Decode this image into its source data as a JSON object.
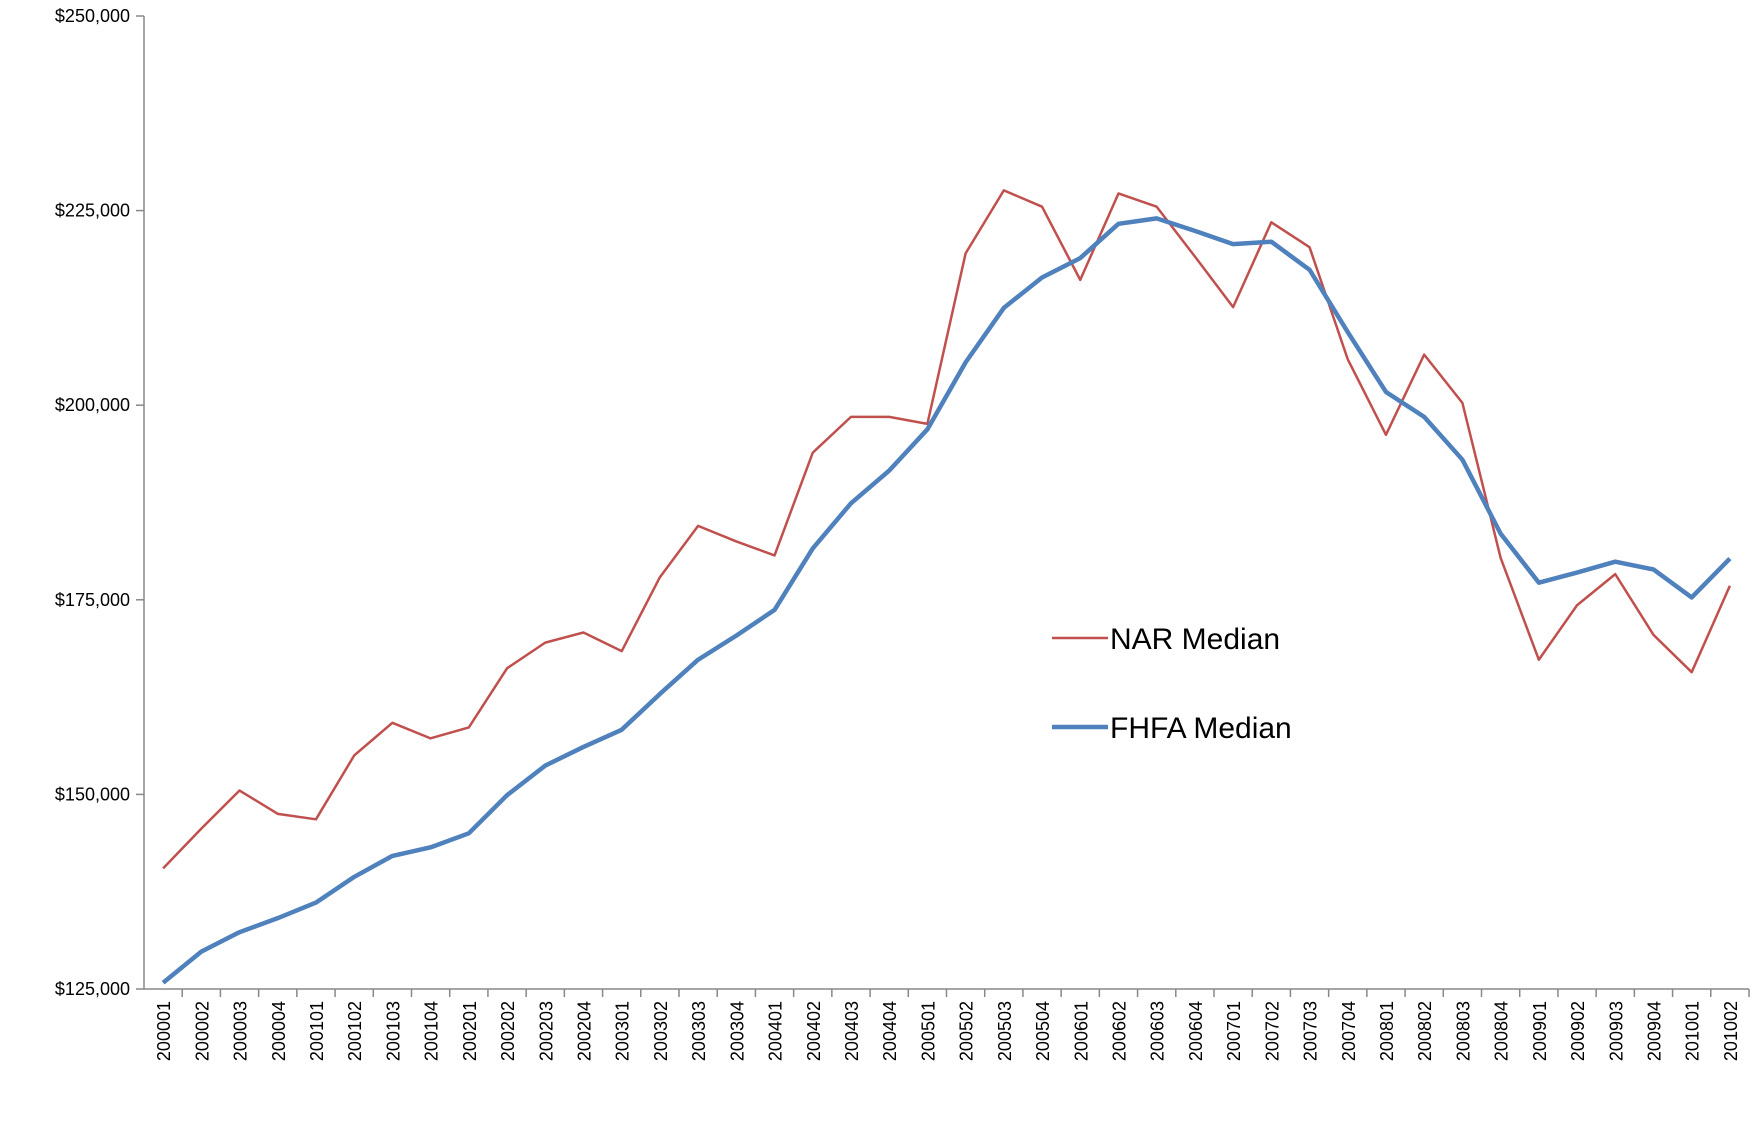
{
  "chart_data": {
    "type": "line",
    "categories": [
      "200001",
      "200002",
      "200003",
      "200004",
      "200101",
      "200102",
      "200103",
      "200104",
      "200201",
      "200202",
      "200203",
      "200204",
      "200301",
      "200302",
      "200303",
      "200304",
      "200401",
      "200402",
      "200403",
      "200404",
      "200501",
      "200502",
      "200503",
      "200504",
      "200601",
      "200602",
      "200603",
      "200604",
      "200701",
      "200702",
      "200703",
      "200704",
      "200801",
      "200802",
      "200803",
      "200804",
      "200901",
      "200902",
      "200903",
      "200904",
      "201001",
      "201002"
    ],
    "series": [
      {
        "name": "NAR Median",
        "color": "#c0504d",
        "width": 2.5,
        "values": [
          140500,
          145600,
          150500,
          147500,
          146800,
          155000,
          159200,
          157200,
          158600,
          166200,
          169500,
          170800,
          168400,
          177900,
          184500,
          182500,
          180700,
          193900,
          198500,
          198500,
          197600,
          219500,
          227600,
          225500,
          216100,
          227200,
          225500,
          219100,
          212600,
          223500,
          220300,
          205900,
          196200,
          206500,
          200300,
          180400,
          167300,
          174300,
          178300,
          170500,
          165700,
          176800
        ]
      },
      {
        "name": "FHFA Median",
        "color": "#4f81bd",
        "width": 4.5,
        "values": [
          125800,
          129800,
          132300,
          134100,
          136100,
          139400,
          142100,
          143200,
          145000,
          149900,
          153700,
          156100,
          158300,
          162900,
          167300,
          170400,
          173700,
          181600,
          187400,
          191600,
          196900,
          205500,
          212500,
          216400,
          218900,
          223300,
          224000,
          222400,
          220700,
          221000,
          217400,
          209400,
          201700,
          198500,
          193000,
          183500,
          177200,
          178500,
          179900,
          178900,
          175300,
          180300
        ]
      }
    ],
    "ylim": [
      125000,
      250000
    ],
    "yticks": [
      {
        "value": 125000,
        "label": "$125,000"
      },
      {
        "value": 150000,
        "label": "$150,000"
      },
      {
        "value": 175000,
        "label": "$175,000"
      },
      {
        "value": 200000,
        "label": "$200,000"
      },
      {
        "value": 225000,
        "label": "$225,000"
      },
      {
        "value": 250000,
        "label": "$250,000"
      }
    ],
    "grid": false
  }
}
